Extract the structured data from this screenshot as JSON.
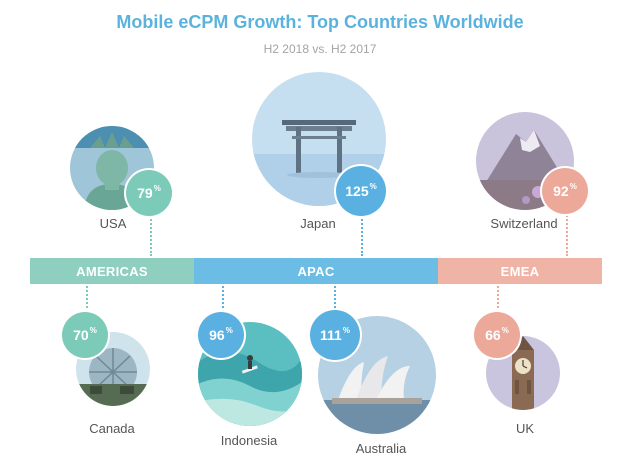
{
  "header": {
    "title": "Mobile eCPM Growth: Top Countries Worldwide",
    "subtitle": "H2 2018 vs. H2 2017"
  },
  "percent_symbol": "%",
  "regions": [
    {
      "name": "AMERICAS",
      "color": "#8ecfbf"
    },
    {
      "name": "APAC",
      "color": "#6bbde6"
    },
    {
      "name": "EMEA",
      "color": "#f0b4a6"
    }
  ],
  "countries": [
    {
      "name": "USA",
      "growth": "79",
      "region": "AMERICAS",
      "badge_color": "#7ccab8",
      "photo": "statue-of-liberty-photo"
    },
    {
      "name": "Japan",
      "growth": "125",
      "region": "APAC",
      "badge_color": "#5ab1e1",
      "photo": "torii-gate-photo"
    },
    {
      "name": "Switzerland",
      "growth": "92",
      "region": "EMEA",
      "badge_color": "#eca898",
      "photo": "matterhorn-photo"
    },
    {
      "name": "Canada",
      "growth": "70",
      "region": "AMERICAS",
      "badge_color": "#7ccab8",
      "photo": "biosphere-photo"
    },
    {
      "name": "Indonesia",
      "growth": "96",
      "region": "APAC",
      "badge_color": "#5ab1e1",
      "photo": "surfer-photo"
    },
    {
      "name": "Australia",
      "growth": "111",
      "region": "APAC",
      "badge_color": "#5ab1e1",
      "photo": "sydney-opera-house-photo"
    },
    {
      "name": "UK",
      "growth": "66",
      "region": "EMEA",
      "badge_color": "#eca898",
      "photo": "big-ben-photo"
    }
  ]
}
